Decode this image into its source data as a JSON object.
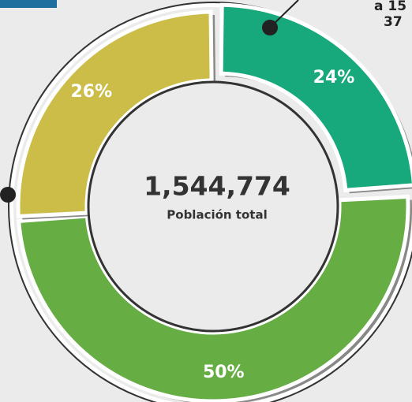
{
  "chart_data": {
    "type": "donut",
    "categories": [
      null,
      null,
      null
    ],
    "values": [
      24,
      50,
      26
    ],
    "value_labels": [
      "24%",
      "50%",
      "26%"
    ],
    "colors": [
      "#17a97b",
      "#66ad44",
      "#cbbd48"
    ],
    "center_value": "1,544,774",
    "center_label": "Población total",
    "annotations": [
      "a 15",
      "37"
    ]
  }
}
